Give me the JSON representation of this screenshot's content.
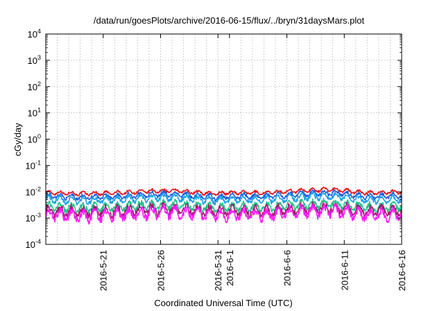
{
  "chart_data": {
    "type": "line",
    "title": "/data/run/goesPlots/archive/2016-06-15/flux/../bryn/31daysMars.plot",
    "xlabel": "Coordinated Universal Time (UTC)",
    "ylabel": "cGy/day",
    "y_scale": "log",
    "ylim": [
      0.0001,
      10000
    ],
    "xlim": [
      "2016-05-16",
      "2016-06-16"
    ],
    "grid": true,
    "x_ticks": [
      "2016-5-21",
      "2016-5-26",
      "2016-5-31",
      "2016-6-1",
      "2016-6-6",
      "2016-6-11",
      "2016-6-16"
    ],
    "y_ticks": [
      {
        "value": 0.0001,
        "base": "10",
        "exp": "-4"
      },
      {
        "value": 0.001,
        "base": "10",
        "exp": "-3"
      },
      {
        "value": 0.01,
        "base": "10",
        "exp": "-2"
      },
      {
        "value": 0.1,
        "base": "10",
        "exp": "-1"
      },
      {
        "value": 1,
        "base": "10",
        "exp": "0"
      },
      {
        "value": 10,
        "base": "10",
        "exp": "1"
      },
      {
        "value": 100,
        "base": "10",
        "exp": "2"
      },
      {
        "value": 1000,
        "base": "10",
        "exp": "3"
      },
      {
        "value": 10000,
        "base": "10",
        "exp": "4"
      }
    ],
    "series": [
      {
        "color": "#e8141c",
        "x": [
          "2016-05-16",
          "2016-05-19",
          "2016-05-22",
          "2016-05-25",
          "2016-05-27",
          "2016-05-30",
          "2016-05-31",
          "2016-06-01",
          "2016-06-04",
          "2016-06-07",
          "2016-06-10",
          "2016-06-13",
          "2016-06-16"
        ],
        "y": [
          0.0095,
          0.0085,
          0.009,
          0.0105,
          0.011,
          0.009,
          0.0085,
          0.0095,
          0.009,
          0.011,
          0.0125,
          0.009,
          0.01
        ]
      },
      {
        "color": "#2060e0",
        "x": [
          "2016-05-16",
          "2016-05-19",
          "2016-05-22",
          "2016-05-25",
          "2016-05-27",
          "2016-05-30",
          "2016-05-31",
          "2016-06-01",
          "2016-06-04",
          "2016-06-07",
          "2016-06-10",
          "2016-06-13",
          "2016-06-16"
        ],
        "y": [
          0.007,
          0.0062,
          0.0066,
          0.0078,
          0.0082,
          0.0066,
          0.0062,
          0.007,
          0.0066,
          0.0082,
          0.0092,
          0.0066,
          0.0072
        ]
      },
      {
        "color": "#19a2e8",
        "x": [
          "2016-05-16",
          "2016-05-19",
          "2016-05-22",
          "2016-05-25",
          "2016-05-27",
          "2016-05-30",
          "2016-05-31",
          "2016-06-01",
          "2016-06-04",
          "2016-06-07",
          "2016-06-10",
          "2016-06-13",
          "2016-06-16"
        ],
        "y": [
          0.0052,
          0.0046,
          0.0049,
          0.0058,
          0.0061,
          0.0049,
          0.0046,
          0.0052,
          0.0049,
          0.0061,
          0.0068,
          0.0049,
          0.0053
        ]
      },
      {
        "color": "#22c28a",
        "x": [
          "2016-05-16",
          "2016-05-19",
          "2016-05-22",
          "2016-05-25",
          "2016-05-27",
          "2016-05-30",
          "2016-05-31",
          "2016-06-01",
          "2016-06-04",
          "2016-06-07",
          "2016-06-10",
          "2016-06-13",
          "2016-06-16"
        ],
        "y": [
          0.0027,
          0.0024,
          0.0026,
          0.003,
          0.0032,
          0.0026,
          0.0024,
          0.0027,
          0.0026,
          0.0032,
          0.0035,
          0.0026,
          0.0028
        ]
      },
      {
        "color": "#a01a6e",
        "x": [
          "2016-05-16",
          "2016-05-19",
          "2016-05-22",
          "2016-05-25",
          "2016-05-27",
          "2016-05-30",
          "2016-05-31",
          "2016-06-01",
          "2016-06-04",
          "2016-06-07",
          "2016-06-10",
          "2016-06-13",
          "2016-06-16"
        ],
        "y": [
          0.0019,
          0.0017,
          0.0018,
          0.0021,
          0.0022,
          0.0018,
          0.0017,
          0.0019,
          0.0018,
          0.0022,
          0.0024,
          0.0018,
          0.0019
        ]
      },
      {
        "color": "#ff1aff",
        "x": [
          "2016-05-16",
          "2016-05-19",
          "2016-05-22",
          "2016-05-25",
          "2016-05-27",
          "2016-05-30",
          "2016-05-31",
          "2016-06-01",
          "2016-06-04",
          "2016-06-07",
          "2016-06-10",
          "2016-06-13",
          "2016-06-16"
        ],
        "y": [
          0.0014,
          0.0012,
          0.0013,
          0.0016,
          0.0017,
          0.0013,
          0.0012,
          0.0014,
          0.0013,
          0.0017,
          0.0019,
          0.0013,
          0.0014
        ]
      }
    ]
  }
}
